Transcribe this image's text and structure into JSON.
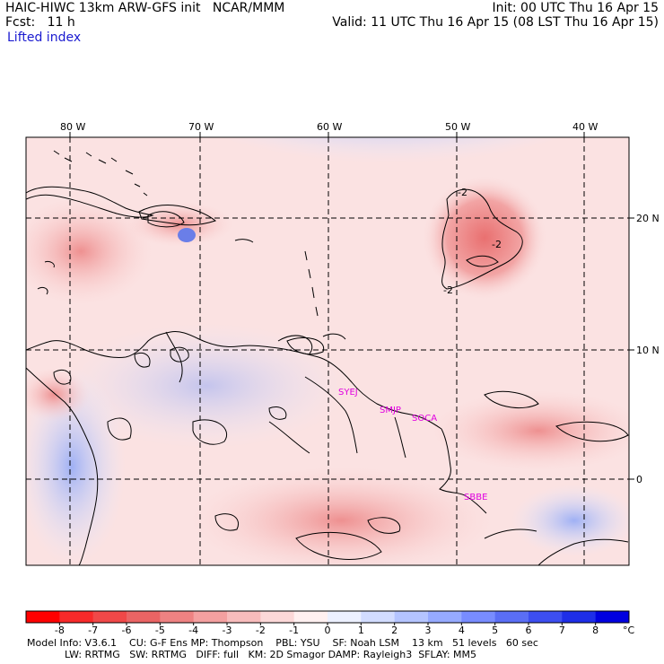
{
  "header": {
    "line1_left": "HAIC-HIWC 13km ARW-GFS init   NCAR/MMM",
    "line1_right": "Init: 00 UTC Thu 16 Apr 15",
    "line2_left": "Fcst:   11 h",
    "line2_right": "Valid: 11 UTC Thu 16 Apr 15 (08 LST Thu 16 Apr 15)",
    "field_name": "Lifted index"
  },
  "axes": {
    "lon_labels": [
      "80 W",
      "70 W",
      "60 W",
      "50 W",
      "40 W"
    ],
    "lat_labels": [
      "20 N",
      "10 N",
      "0"
    ]
  },
  "stations": [
    "SYEJ",
    "SMJP",
    "SOCA",
    "SBBE"
  ],
  "contour_labels": [
    "-2",
    "-2",
    "-2"
  ],
  "colorbar": {
    "ticks": [
      "-8",
      "-7",
      "-6",
      "-5",
      "-4",
      "-3",
      "-2",
      "-1",
      "0",
      "1",
      "2",
      "3",
      "4",
      "5",
      "6",
      "7",
      "8"
    ],
    "unit": "°C",
    "colors": [
      "#ff0000",
      "#f82a2a",
      "#f04848",
      "#ea6464",
      "#ee8282",
      "#f4a0a0",
      "#f8bcbc",
      "#fcd8d8",
      "#fff0f0",
      "#ecf0ff",
      "#d2dcff",
      "#b4c4ff",
      "#96aaff",
      "#788cff",
      "#5a6ef5",
      "#3c4ef0",
      "#1e2ee8",
      "#0000e0"
    ]
  },
  "footer": {
    "line1": "Model Info: V3.6.1    CU: G-F Ens MP: Thompson    PBL: YSU    SF: Noah LSM    13 km   51 levels   60 sec",
    "line2": "LW: RRTMG   SW: RRTMG   DIFF: full   KM: 2D Smagor DAMP: Rayleigh3  SFLAY: MM5"
  }
}
